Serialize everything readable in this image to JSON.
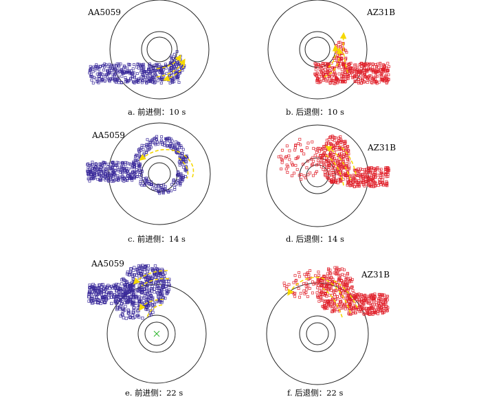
{
  "figure": {
    "colors": {
      "advancing_particles": "#3a2a9a",
      "retreating_particles": "#e0202a",
      "flow_arrows": "#f5d800",
      "outline": "#222222",
      "tool_center": "#2bb52b"
    },
    "panels": [
      {
        "material": "AA5059",
        "caption": "a.  前进侧：10 s"
      },
      {
        "material": "AZ31B",
        "caption": "b.  后退侧：10 s"
      },
      {
        "material": "AA5059",
        "caption": "c.  前进侧：14 s"
      },
      {
        "material": "AZ31B",
        "caption": "d.  后退侧：14 s"
      },
      {
        "material": "AA5059",
        "caption": "e.  前进侧：22 s"
      },
      {
        "material": "AZ31B",
        "caption": "f.  后退侧：22 s"
      }
    ]
  }
}
